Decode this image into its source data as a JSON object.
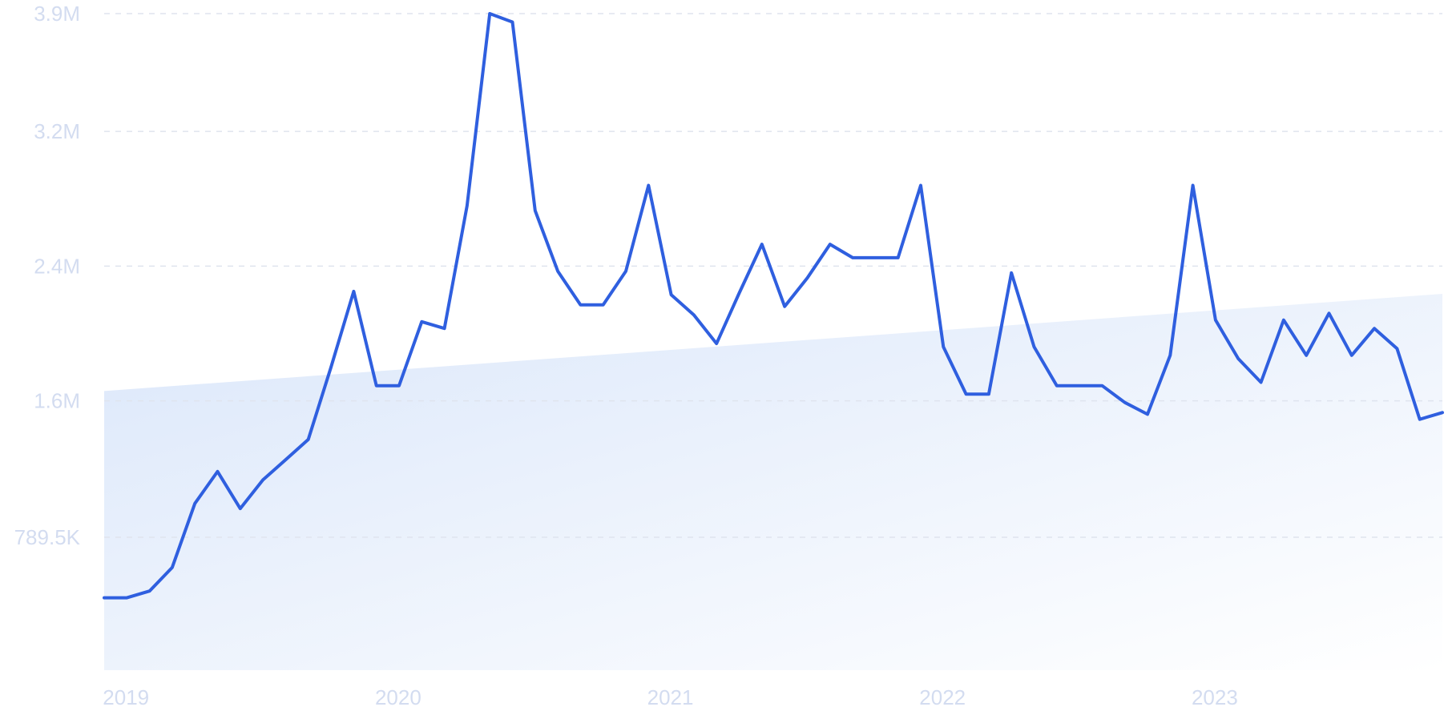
{
  "chart_data": {
    "type": "line",
    "title": "",
    "xlabel": "",
    "ylabel": "",
    "x_tick_labels": [
      "2019",
      "2020",
      "2021",
      "2022",
      "2023"
    ],
    "y_tick_labels": [
      "789.5K",
      "1.6M",
      "2.4M",
      "3.2M",
      "3.9M"
    ],
    "y_tick_values": [
      789500,
      1600000,
      2400000,
      3200000,
      3900000
    ],
    "ylim": [
      0,
      3900000
    ],
    "grid": true,
    "series": [
      {
        "x": [
          "2018-12",
          "2019-01",
          "2019-02",
          "2019-03",
          "2019-04",
          "2019-05",
          "2019-06",
          "2019-07",
          "2019-08",
          "2019-09",
          "2019-10",
          "2019-11",
          "2019-12",
          "2020-01",
          "2020-02",
          "2020-03",
          "2020-04",
          "2020-05",
          "2020-06",
          "2020-07",
          "2020-08",
          "2020-09",
          "2020-10",
          "2020-11",
          "2020-12",
          "2021-01",
          "2021-02",
          "2021-03",
          "2021-04",
          "2021-05",
          "2021-06",
          "2021-07",
          "2021-08",
          "2021-09",
          "2021-10",
          "2021-11",
          "2021-12",
          "2022-01",
          "2022-02",
          "2022-03",
          "2022-04",
          "2022-05",
          "2022-06",
          "2022-07",
          "2022-08",
          "2022-09",
          "2022-10",
          "2022-11",
          "2022-12",
          "2023-01",
          "2023-02",
          "2023-03",
          "2023-04",
          "2023-05",
          "2023-06",
          "2023-07",
          "2023-08",
          "2023-09",
          "2023-10",
          "2023-11"
        ],
        "values": [
          430000,
          430000,
          470000,
          610000,
          990000,
          1180000,
          960000,
          1130000,
          1250000,
          1370000,
          1800000,
          2250000,
          1690000,
          1690000,
          2070000,
          2030000,
          2760000,
          3900000,
          3850000,
          2730000,
          2370000,
          2170000,
          2170000,
          2370000,
          2880000,
          2230000,
          2110000,
          1940000,
          2240000,
          2530000,
          2160000,
          2330000,
          2530000,
          2450000,
          2450000,
          2450000,
          2880000,
          1920000,
          1640000,
          1640000,
          2360000,
          1920000,
          1690000,
          1690000,
          1690000,
          1590000,
          1520000,
          1870000,
          2880000,
          2080000,
          1850000,
          1710000,
          2080000,
          1870000,
          2120000,
          1870000,
          2030000,
          1910000,
          1490000,
          1530000
        ]
      }
    ],
    "area_colors": [
      "#dbe7fa",
      "#ffffff"
    ],
    "line_color": "#2f5fdf",
    "tick_color": "#d3dcf0"
  }
}
